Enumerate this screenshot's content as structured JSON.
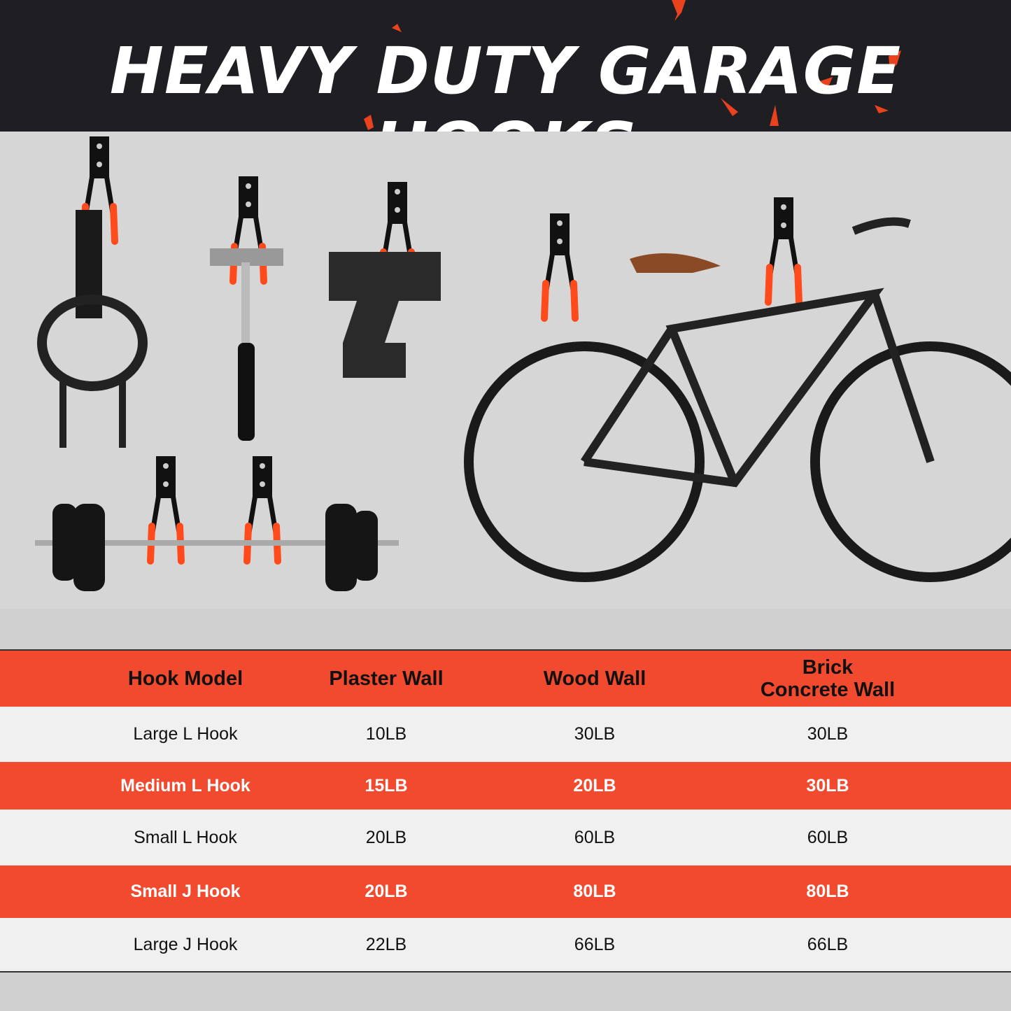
{
  "title": "HEAVY DUTY GARAGE HOOKS",
  "colors": {
    "accent": "#f24a2e",
    "header_bg": "#1f1f23",
    "hook_tip": "#ff4a1c"
  },
  "photo_items": [
    "extension-cord",
    "hammer",
    "cordless-drill",
    "bicycle",
    "barbell"
  ],
  "table": {
    "headers": [
      "Hook Model",
      "Plaster Wall",
      "Wood Wall",
      "Brick\nConcrete Wall"
    ],
    "rows": [
      [
        "Large L Hook",
        "10LB",
        "30LB",
        "30LB"
      ],
      [
        "Medium L Hook",
        "15LB",
        "20LB",
        "30LB"
      ],
      [
        "Small L Hook",
        "20LB",
        "60LB",
        "60LB"
      ],
      [
        "Small J Hook",
        "20LB",
        "80LB",
        "80LB"
      ],
      [
        "Large J Hook",
        "22LB",
        "66LB",
        "66LB"
      ]
    ]
  }
}
